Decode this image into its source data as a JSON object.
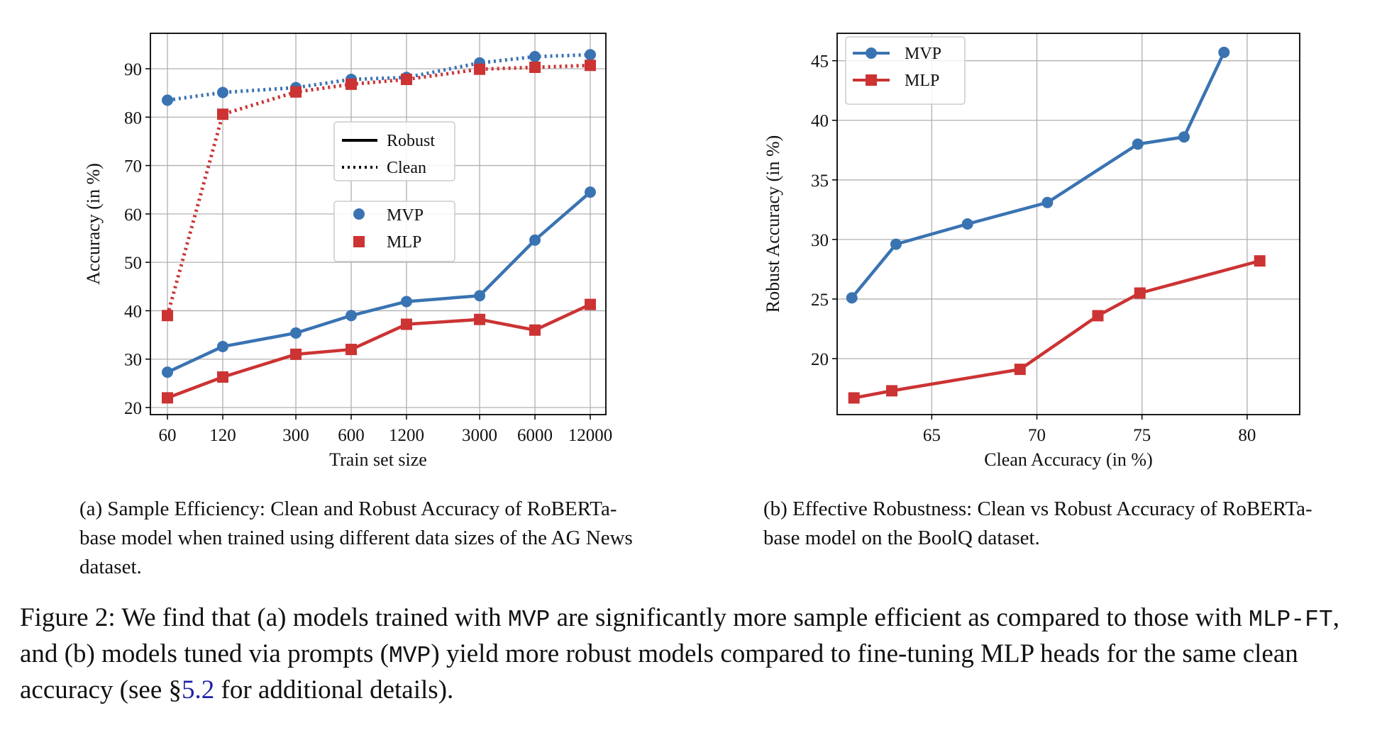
{
  "chart_data": [
    {
      "type": "line",
      "xlabel": "Train set size",
      "ylabel": "Accuracy (in %)",
      "categories": [
        "60",
        "120",
        "300",
        "600",
        "1200",
        "3000",
        "6000",
        "12000"
      ],
      "xscale": "log",
      "ylim": [
        20,
        95
      ],
      "yticks": [
        20,
        30,
        40,
        50,
        60,
        70,
        80,
        90
      ],
      "grid": true,
      "series": [
        {
          "name": "MVP",
          "variant": "Robust",
          "style": "solid",
          "marker": "circle",
          "color": "#3a73b2",
          "values": [
            27.3,
            32.6,
            35.4,
            39.0,
            41.9,
            43.1,
            54.6,
            64.5
          ]
        },
        {
          "name": "MLP",
          "variant": "Robust",
          "style": "solid",
          "marker": "square",
          "color": "#cc3333",
          "values": [
            22.0,
            26.3,
            31.0,
            32.0,
            37.2,
            38.2,
            36.0,
            41.3
          ]
        },
        {
          "name": "MVP",
          "variant": "Clean",
          "style": "dotted",
          "marker": "circle",
          "color": "#3a73b2",
          "values": [
            83.5,
            85.1,
            86.1,
            87.8,
            88.2,
            91.2,
            92.5,
            92.9
          ]
        },
        {
          "name": "MLP",
          "variant": "Clean",
          "style": "dotted",
          "marker": "square",
          "color": "#cc3333",
          "values": [
            39.0,
            80.6,
            85.2,
            86.8,
            87.8,
            89.9,
            90.3,
            90.7
          ]
        }
      ],
      "legend_style": {
        "position": "center",
        "items": [
          {
            "label": "Robust",
            "style": "solid"
          },
          {
            "label": "Clean",
            "style": "dotted"
          }
        ]
      },
      "legend_model": {
        "position": "center",
        "items": [
          {
            "label": "MVP",
            "marker": "circle",
            "color": "#3a73b2"
          },
          {
            "label": "MLP",
            "marker": "square",
            "color": "#cc3333"
          }
        ]
      }
    },
    {
      "type": "line",
      "xlabel": "Clean Accuracy (in %)",
      "ylabel": "Robust Accuracy (in %)",
      "xlim": [
        60.5,
        82.5
      ],
      "ylim": [
        15.3,
        47.3
      ],
      "xticks": [
        65,
        70,
        75,
        80
      ],
      "yticks": [
        20,
        25,
        30,
        35,
        40,
        45
      ],
      "grid": true,
      "legend": {
        "position": "top-left"
      },
      "series": [
        {
          "name": "MVP",
          "marker": "circle",
          "color": "#3a73b2",
          "x": [
            61.2,
            63.3,
            66.7,
            70.5,
            74.8,
            77.0,
            78.9
          ],
          "y": [
            25.1,
            29.6,
            31.3,
            33.1,
            38.0,
            38.6,
            45.7
          ]
        },
        {
          "name": "MLP",
          "marker": "square",
          "color": "#cc3333",
          "x": [
            61.3,
            63.1,
            69.2,
            72.9,
            74.9,
            80.6
          ],
          "y": [
            16.7,
            17.3,
            19.1,
            23.6,
            25.5,
            28.2
          ]
        }
      ]
    }
  ],
  "captions": {
    "a": "(a) Sample Efficiency: Clean and Robust Accuracy of RoBERTa-base model when trained using different data sizes of the AG News dataset.",
    "b": "(b) Effective Robustness: Clean vs Robust Accuracy of RoBERTa-base model on the BoolQ dataset."
  },
  "figure_caption": {
    "t1": "Figure 2: We find that (a) models trained with ",
    "code1": "MVP",
    "t2": " are significantly more sample efficient as compared to those with ",
    "code2": "MLP-FT",
    "t3": ", and (b) models tuned via prompts (",
    "code3": "MVP",
    "t4": ") yield more robust models compared to fine-tuning MLP heads for the same clean accuracy (see §",
    "ref": "5.2",
    "t5": " for additional details)."
  }
}
